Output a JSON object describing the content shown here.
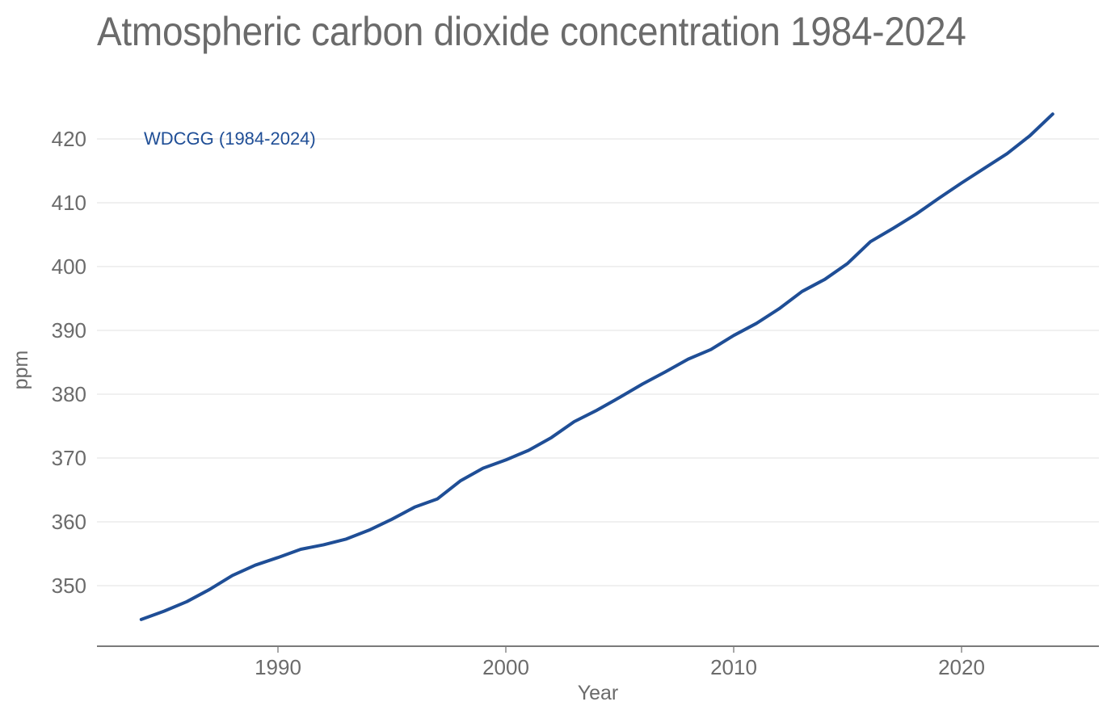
{
  "chart_data": {
    "type": "line",
    "title": "Atmospheric carbon dioxide concentration 1984-2024",
    "xlabel": "Year",
    "ylabel": "ppm",
    "xlim": [
      1976,
      2026
    ],
    "ylim": [
      340.5,
      424
    ],
    "grid": true,
    "x_ticks": [
      1990,
      2000,
      2010,
      2020
    ],
    "x_tick_labels": [
      "1990",
      "2000",
      "2010",
      "2020"
    ],
    "y_ticks": [
      350,
      360,
      370,
      380,
      390,
      400,
      410,
      420
    ],
    "y_tick_labels": [
      "350",
      "360",
      "370",
      "380",
      "390",
      "400",
      "410",
      "420"
    ],
    "legend_position": "top-left (inline label)",
    "x": [
      1984,
      1985,
      1986,
      1987,
      1988,
      1989,
      1990,
      1991,
      1992,
      1993,
      1994,
      1995,
      1996,
      1997,
      1998,
      1999,
      2000,
      2001,
      2002,
      2003,
      2004,
      2005,
      2006,
      2007,
      2008,
      2009,
      2010,
      2011,
      2012,
      2013,
      2014,
      2015,
      2016,
      2017,
      2018,
      2019,
      2020,
      2021,
      2022,
      2023,
      2024
    ],
    "series": [
      {
        "name": "WDCGG (1984-2024)",
        "color": "#1f4e96",
        "values": [
          344.7,
          346.0,
          347.5,
          349.4,
          351.6,
          353.2,
          354.4,
          355.7,
          356.4,
          357.3,
          358.7,
          360.4,
          362.3,
          363.6,
          366.4,
          368.4,
          369.7,
          371.2,
          373.2,
          375.7,
          377.5,
          379.5,
          381.6,
          383.5,
          385.5,
          387.0,
          389.2,
          391.1,
          393.4,
          396.1,
          398.0,
          400.5,
          403.9,
          406.0,
          408.2,
          410.7,
          413.1,
          415.4,
          417.7,
          420.5,
          423.9
        ]
      }
    ]
  },
  "colors": {
    "text": "#6b6b6b",
    "grid": "#e6e6e6",
    "axis": "#7a7a7a",
    "series": "#1f4e96"
  }
}
